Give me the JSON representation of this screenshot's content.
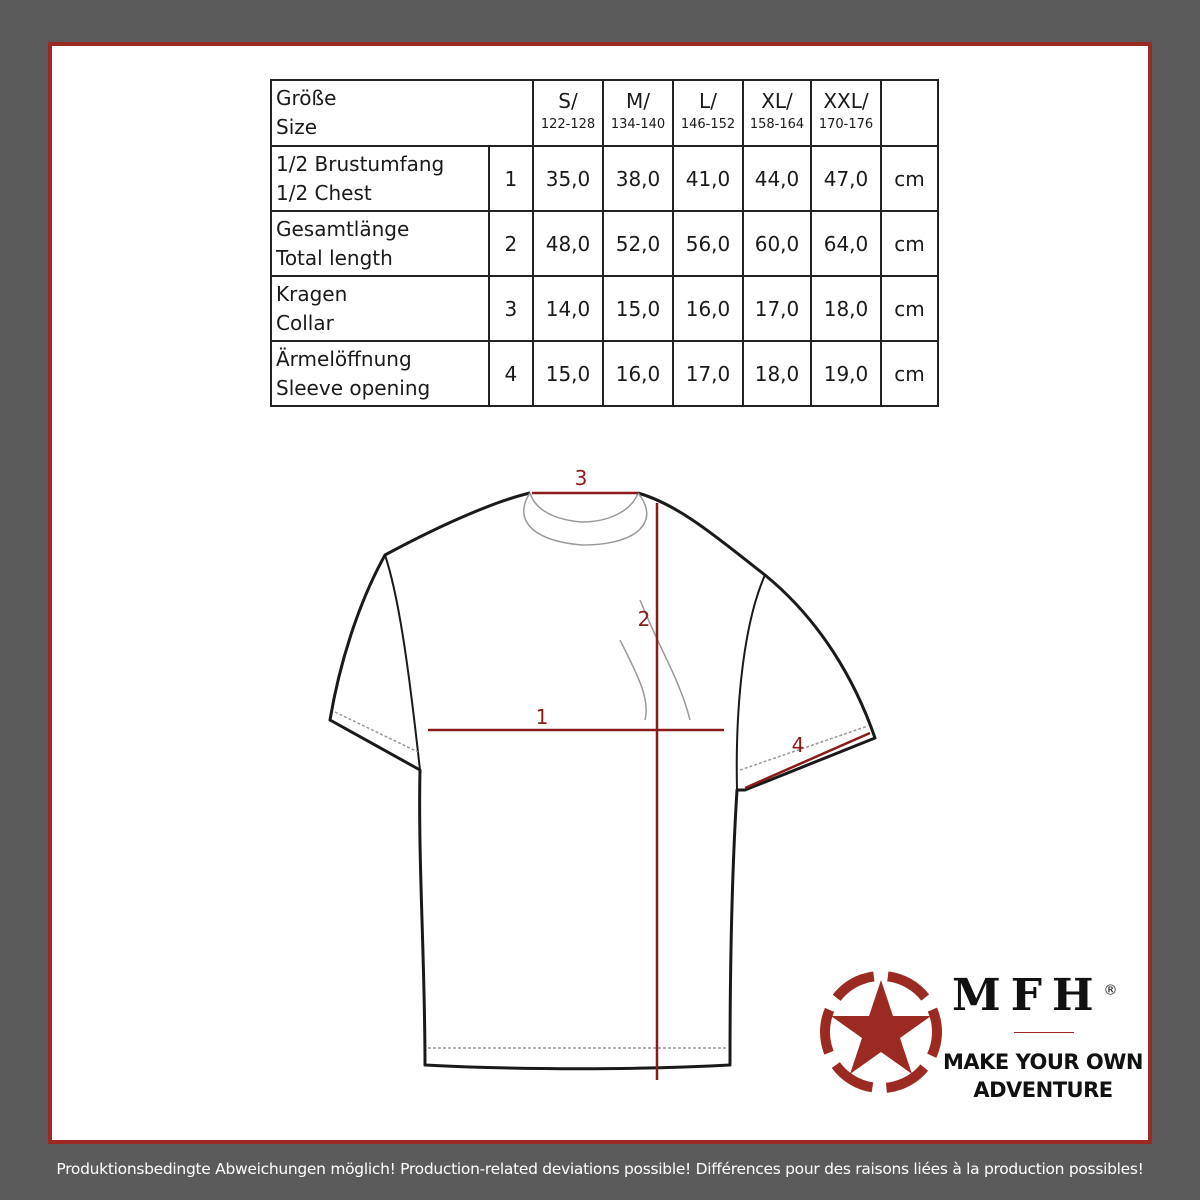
{
  "table": {
    "header": {
      "label_de": "Größe",
      "label_en": "Size"
    },
    "sizes": [
      {
        "size": "S/",
        "range": "122-128"
      },
      {
        "size": "M/",
        "range": "134-140"
      },
      {
        "size": "L/",
        "range": "146-152"
      },
      {
        "size": "XL/",
        "range": "158-164"
      },
      {
        "size": "XXL/",
        "range": "170-176"
      }
    ],
    "rows": [
      {
        "label_de": "1/2 Brustumfang",
        "label_en": "1/2 Chest",
        "num": "1",
        "values": [
          "35,0",
          "38,0",
          "41,0",
          "44,0",
          "47,0"
        ],
        "unit": "cm"
      },
      {
        "label_de": "Gesamtlänge",
        "label_en": "Total length",
        "num": "2",
        "values": [
          "48,0",
          "52,0",
          "56,0",
          "60,0",
          "64,0"
        ],
        "unit": "cm"
      },
      {
        "label_de": "Kragen",
        "label_en": "Collar",
        "num": "3",
        "values": [
          "14,0",
          "15,0",
          "16,0",
          "17,0",
          "18,0"
        ],
        "unit": "cm"
      },
      {
        "label_de": "Ärmelöffnung",
        "label_en": "Sleeve opening",
        "num": "4",
        "values": [
          "15,0",
          "16,0",
          "17,0",
          "18,0",
          "19,0"
        ],
        "unit": "cm"
      }
    ]
  },
  "diagram": {
    "markers": [
      "1",
      "2",
      "3",
      "4"
    ],
    "measure_color": "#8b1a1a"
  },
  "logo": {
    "brand": "MFH",
    "registered": "®",
    "slogan_line1": "MAKE YOUR OWN",
    "slogan_line2": "ADVENTURE",
    "color": "#9a2a22"
  },
  "footer": "Produktionsbedingte Abweichungen möglich! Production-related deviations possible! Différences pour des raisons liées à la production possibles!"
}
